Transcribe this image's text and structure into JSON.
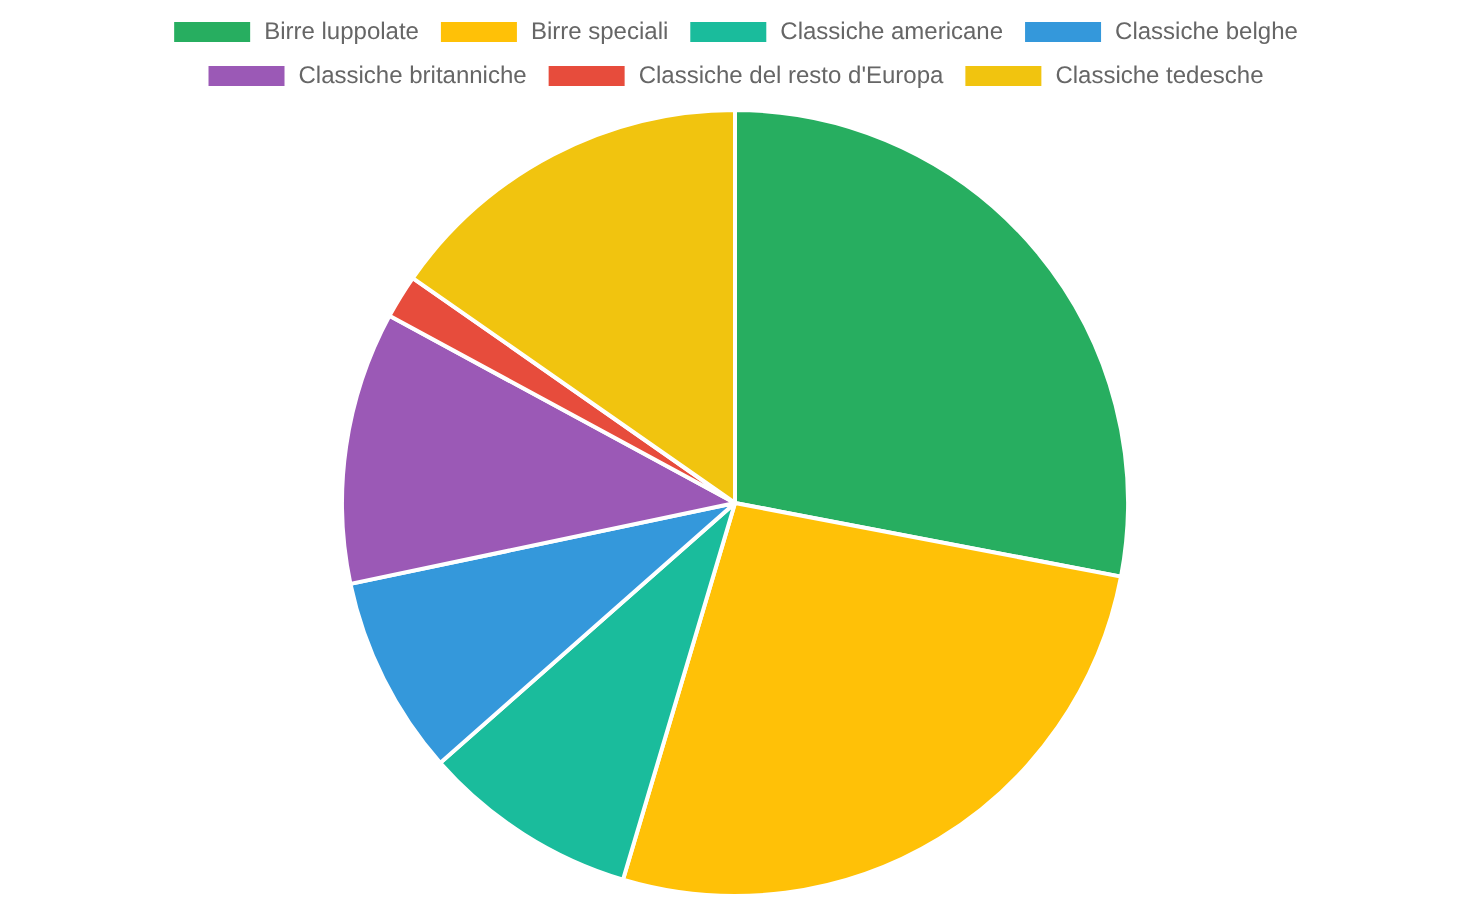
{
  "chart_data": {
    "type": "pie",
    "categories": [
      "Birre luppolate",
      "Birre speciali",
      "Classiche americane",
      "Classiche belghe",
      "Classiche britanniche",
      "Classiche del resto d'Europa",
      "Classiche tedesche"
    ],
    "values": [
      28.0,
      26.6,
      8.9,
      8.2,
      11.2,
      1.8,
      15.3
    ],
    "colors": [
      "#27ae60",
      "#ffc107",
      "#1abc9c",
      "#3498db",
      "#9b59b6",
      "#e74c3c",
      "#f1c40f"
    ],
    "legend": "top"
  }
}
